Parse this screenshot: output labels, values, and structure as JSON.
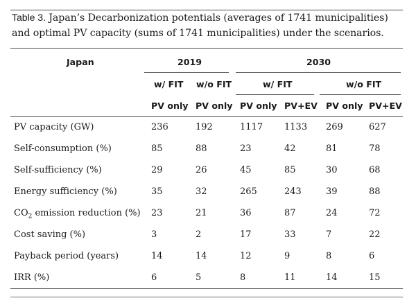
{
  "caption": {
    "label": "Table 3.",
    "text": "Japan’s Decarbonization potentials (averages of 1741 municipalities) and optimal PV capacity (sums of 1741 municipalities) under the scenarios."
  },
  "table": {
    "corner_header": "Japan",
    "years": [
      "2019",
      "2030"
    ],
    "fit_headers": [
      "w/ FIT",
      "w/o FIT",
      "w/ FIT",
      "w/o FIT"
    ],
    "case_headers": [
      "PV only",
      "PV only",
      "PV only",
      "PV+EV",
      "PV only",
      "PV+EV"
    ],
    "rows": [
      {
        "label": "PV capacity (GW)",
        "values": [
          "236",
          "192",
          "1117",
          "1133",
          "269",
          "627"
        ]
      },
      {
        "label": "Self-consumption (%)",
        "values": [
          "85",
          "88",
          "23",
          "42",
          "81",
          "78"
        ]
      },
      {
        "label": "Self-sufficiency (%)",
        "values": [
          "29",
          "26",
          "45",
          "85",
          "30",
          "68"
        ]
      },
      {
        "label": "Energy sufficiency (%)",
        "values": [
          "35",
          "32",
          "265",
          "243",
          "39",
          "88"
        ]
      },
      {
        "label_pre": "CO",
        "label_sub": "2",
        "label_post": " emission reduction (%)",
        "values": [
          "23",
          "21",
          "36",
          "87",
          "24",
          "72"
        ]
      },
      {
        "label": "Cost saving (%)",
        "values": [
          "3",
          "2",
          "17",
          "33",
          "7",
          "22"
        ]
      },
      {
        "label": "Payback period (years)",
        "values": [
          "14",
          "14",
          "12",
          "9",
          "8",
          "6"
        ]
      },
      {
        "label": "IRR (%)",
        "values": [
          "6",
          "5",
          "8",
          "11",
          "14",
          "15"
        ]
      }
    ]
  }
}
